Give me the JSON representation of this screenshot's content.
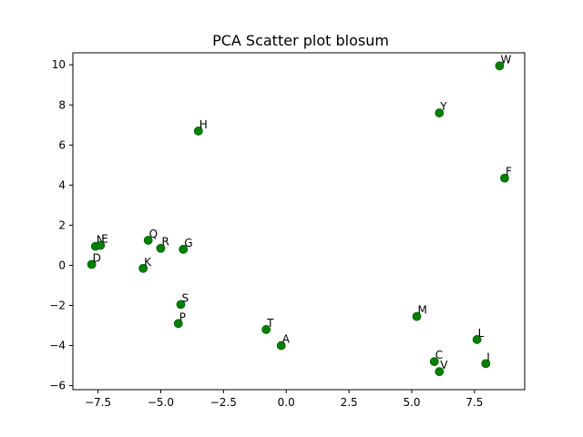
{
  "chart_data": {
    "type": "scatter",
    "title": "PCA Scatter plot blosum",
    "xlabel": "",
    "ylabel": "",
    "xlim": [
      -8.5,
      9.5
    ],
    "ylim": [
      -6.2,
      10.6
    ],
    "grid": false,
    "legend": "none",
    "marker_color": "#008000",
    "marker_edge_color": "#005f00",
    "x_ticks": [
      -7.5,
      -5.0,
      -2.5,
      0.0,
      2.5,
      5.0,
      7.5
    ],
    "x_tick_labels": [
      "−7.5",
      "−5.0",
      "−2.5",
      "0.0",
      "2.5",
      "5.0",
      "7.5"
    ],
    "y_ticks": [
      -6,
      -4,
      -2,
      0,
      2,
      4,
      6,
      8,
      10
    ],
    "y_tick_labels": [
      "−6",
      "−4",
      "−2",
      "0",
      "2",
      "4",
      "6",
      "8",
      "10"
    ],
    "points": [
      {
        "label": "W",
        "x": 8.5,
        "y": 9.95
      },
      {
        "label": "Y",
        "x": 6.1,
        "y": 7.6
      },
      {
        "label": "H",
        "x": -3.5,
        "y": 6.7
      },
      {
        "label": "F",
        "x": 8.7,
        "y": 4.35
      },
      {
        "label": "N",
        "x": -7.6,
        "y": 0.95
      },
      {
        "label": "E",
        "x": -7.4,
        "y": 1.0
      },
      {
        "label": "Q",
        "x": -5.5,
        "y": 1.25
      },
      {
        "label": "R",
        "x": -5.0,
        "y": 0.85
      },
      {
        "label": "G",
        "x": -4.1,
        "y": 0.8
      },
      {
        "label": "D",
        "x": -7.75,
        "y": 0.05
      },
      {
        "label": "K",
        "x": -5.7,
        "y": -0.15
      },
      {
        "label": "S",
        "x": -4.2,
        "y": -1.95
      },
      {
        "label": "P",
        "x": -4.3,
        "y": -2.9
      },
      {
        "label": "T",
        "x": -0.8,
        "y": -3.2
      },
      {
        "label": "A",
        "x": -0.2,
        "y": -4.0
      },
      {
        "label": "M",
        "x": 5.2,
        "y": -2.55
      },
      {
        "label": "L",
        "x": 7.6,
        "y": -3.7
      },
      {
        "label": "C",
        "x": 5.9,
        "y": -4.8
      },
      {
        "label": "V",
        "x": 6.1,
        "y": -5.3
      },
      {
        "label": "I",
        "x": 7.95,
        "y": -4.9
      }
    ]
  }
}
